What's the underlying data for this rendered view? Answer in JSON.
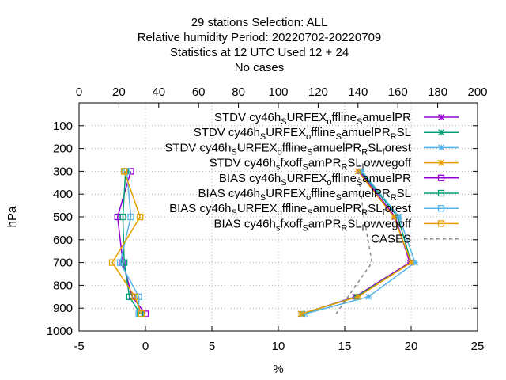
{
  "chart_data": {
    "type": "line",
    "title_lines": [
      "29 stations Selection: ALL",
      "Relative humidity  Period: 20220702-20220709",
      "Statistics at 12 UTC  Used  12 + 24",
      "No cases"
    ],
    "xlabel": "%",
    "ylabel": "hPa",
    "xlim": [
      -5,
      25
    ],
    "x_ticks": [
      "-5",
      "0",
      "5",
      "10",
      "15",
      "20",
      "25"
    ],
    "x_tick_values": [
      -5,
      0,
      5,
      10,
      15,
      20,
      25
    ],
    "x2lim": [
      0,
      200
    ],
    "x2_ticks": [
      "0",
      "20",
      "40",
      "60",
      "80",
      "100",
      "120",
      "140",
      "160",
      "180",
      "200"
    ],
    "x2_tick_values": [
      0,
      20,
      40,
      60,
      80,
      100,
      120,
      140,
      160,
      180,
      200
    ],
    "ylim": [
      1000,
      0
    ],
    "y_ticks": [
      "100",
      "200",
      "300",
      "400",
      "500",
      "600",
      "700",
      "800",
      "900",
      "1000"
    ],
    "y_tick_values": [
      100,
      200,
      300,
      400,
      500,
      600,
      700,
      800,
      900,
      1000
    ],
    "grid": true,
    "legend_position": "top-right",
    "series": [
      {
        "name": "STDV cy46h_SURFEX_offline_samuelPR",
        "legend": [
          [
            "STDV cy46h",
            "n"
          ],
          [
            "S",
            "sub"
          ],
          [
            "URFEX",
            "n"
          ],
          [
            "o",
            "sub"
          ],
          [
            "ffline",
            "n"
          ],
          [
            "S",
            "sub"
          ],
          [
            "amuelPR",
            "n"
          ]
        ],
        "color": "#9400d3",
        "marker": "star",
        "dash": "",
        "points": [
          [
            11.8,
            925
          ],
          [
            15.8,
            850
          ],
          [
            19.9,
            700
          ],
          [
            18.8,
            500
          ],
          [
            16.1,
            300
          ]
        ]
      },
      {
        "name": "STDV cy46h_SURFEX_offline_samuelPR_RSL",
        "legend": [
          [
            "STDV cy46h",
            "n"
          ],
          [
            "S",
            "sub"
          ],
          [
            "URFEX",
            "n"
          ],
          [
            "o",
            "sub"
          ],
          [
            "ffline",
            "n"
          ],
          [
            "S",
            "sub"
          ],
          [
            "amuelPR",
            "n"
          ],
          [
            "R",
            "sub"
          ],
          [
            "SL",
            "n"
          ]
        ],
        "color": "#009e73",
        "marker": "star",
        "dash": "",
        "points": [
          [
            11.8,
            925
          ],
          [
            15.9,
            850
          ],
          [
            20.0,
            700
          ],
          [
            19.0,
            500
          ],
          [
            16.2,
            300
          ]
        ]
      },
      {
        "name": "STDV cy46h_SURFEX_offline_samuelPR_RSL_forest",
        "legend": [
          [
            "STDV cy46h",
            "n"
          ],
          [
            "S",
            "sub"
          ],
          [
            "URFEX",
            "n"
          ],
          [
            "o",
            "sub"
          ],
          [
            "ffline",
            "n"
          ],
          [
            "S",
            "sub"
          ],
          [
            "amuelPR",
            "n"
          ],
          [
            "R",
            "sub"
          ],
          [
            "SL",
            "n"
          ],
          [
            "f",
            "sub"
          ],
          [
            "orest",
            "n"
          ]
        ],
        "color": "#56b4e9",
        "marker": "star",
        "dash": "",
        "points": [
          [
            12.0,
            925
          ],
          [
            16.8,
            850
          ],
          [
            20.3,
            700
          ],
          [
            19.1,
            500
          ],
          [
            16.3,
            300
          ]
        ]
      },
      {
        "name": "STDV cy46h_sfxoff_samPR_RSL_lowvegoff",
        "legend": [
          [
            "STDV cy46h",
            "n"
          ],
          [
            "s",
            "sub"
          ],
          [
            "fxoff",
            "n"
          ],
          [
            "S",
            "sub"
          ],
          [
            "amPR",
            "n"
          ],
          [
            "R",
            "sub"
          ],
          [
            "SL",
            "n"
          ],
          [
            "l",
            "sub"
          ],
          [
            "owvegoff",
            "n"
          ]
        ],
        "color": "#e69f00",
        "marker": "star",
        "dash": "",
        "points": [
          [
            11.7,
            925
          ],
          [
            16.0,
            850
          ],
          [
            20.0,
            700
          ],
          [
            18.7,
            500
          ],
          [
            16.0,
            300
          ]
        ]
      },
      {
        "name": "BIAS cy46h_SURFEX_offline_samuelPR",
        "legend": [
          [
            "BIAS cy46h",
            "n"
          ],
          [
            "S",
            "sub"
          ],
          [
            "URFEX",
            "n"
          ],
          [
            "o",
            "sub"
          ],
          [
            "ffline",
            "n"
          ],
          [
            "S",
            "sub"
          ],
          [
            "amuelPR",
            "n"
          ]
        ],
        "color": "#9400d3",
        "marker": "square",
        "dash": "",
        "points": [
          [
            0.0,
            925
          ],
          [
            -1.0,
            850
          ],
          [
            -1.7,
            700
          ],
          [
            -2.1,
            500
          ],
          [
            -1.1,
            300
          ]
        ]
      },
      {
        "name": "BIAS cy46h_SURFEX_offline_samuelPR_RSL",
        "legend": [
          [
            "BIAS cy46h",
            "n"
          ],
          [
            "S",
            "sub"
          ],
          [
            "URFEX",
            "n"
          ],
          [
            "o",
            "sub"
          ],
          [
            "ffline",
            "n"
          ],
          [
            "S",
            "sub"
          ],
          [
            "amuelPR",
            "n"
          ],
          [
            "R",
            "sub"
          ],
          [
            "SL",
            "n"
          ]
        ],
        "color": "#009e73",
        "marker": "square",
        "dash": "",
        "points": [
          [
            -0.4,
            925
          ],
          [
            -1.2,
            850
          ],
          [
            -1.6,
            700
          ],
          [
            -1.7,
            500
          ],
          [
            -1.5,
            300
          ]
        ]
      },
      {
        "name": "BIAS cy46h_SURFEX_offline_samuelPR_RSL_forest",
        "legend": [
          [
            "BIAS cy46h",
            "n"
          ],
          [
            "S",
            "sub"
          ],
          [
            "URFEX",
            "n"
          ],
          [
            "o",
            "sub"
          ],
          [
            "ffline",
            "n"
          ],
          [
            "S",
            "sub"
          ],
          [
            "amuelPR",
            "n"
          ],
          [
            "R",
            "sub"
          ],
          [
            "SL",
            "n"
          ],
          [
            "f",
            "sub"
          ],
          [
            "orest",
            "n"
          ]
        ],
        "color": "#56b4e9",
        "marker": "square",
        "dash": "",
        "points": [
          [
            -0.5,
            925
          ],
          [
            -0.5,
            850
          ],
          [
            -1.9,
            700
          ],
          [
            -1.1,
            500
          ],
          [
            -1.4,
            300
          ]
        ]
      },
      {
        "name": "BIAS cy46h_sfxoff_samPR_RSL_lowvegoff",
        "legend": [
          [
            "BIAS cy46h",
            "n"
          ],
          [
            "s",
            "sub"
          ],
          [
            "fxoff",
            "n"
          ],
          [
            "S",
            "sub"
          ],
          [
            "amPR",
            "n"
          ],
          [
            "R",
            "sub"
          ],
          [
            "SL",
            "n"
          ],
          [
            "l",
            "sub"
          ],
          [
            "owvegoff",
            "n"
          ]
        ],
        "color": "#e69f00",
        "marker": "square",
        "dash": "",
        "points": [
          [
            -0.3,
            925
          ],
          [
            -0.8,
            850
          ],
          [
            -2.5,
            700
          ],
          [
            -0.4,
            500
          ],
          [
            -1.6,
            300
          ]
        ]
      },
      {
        "name": "CASES",
        "legend": [
          [
            "CASES",
            "n"
          ]
        ],
        "color": "#888888",
        "marker": "none",
        "dash": "4 4",
        "axis": "x2",
        "points": [
          [
            129,
            925
          ],
          [
            135,
            850
          ],
          [
            147,
            700
          ],
          [
            143,
            500
          ],
          [
            140,
            300
          ]
        ]
      }
    ]
  }
}
